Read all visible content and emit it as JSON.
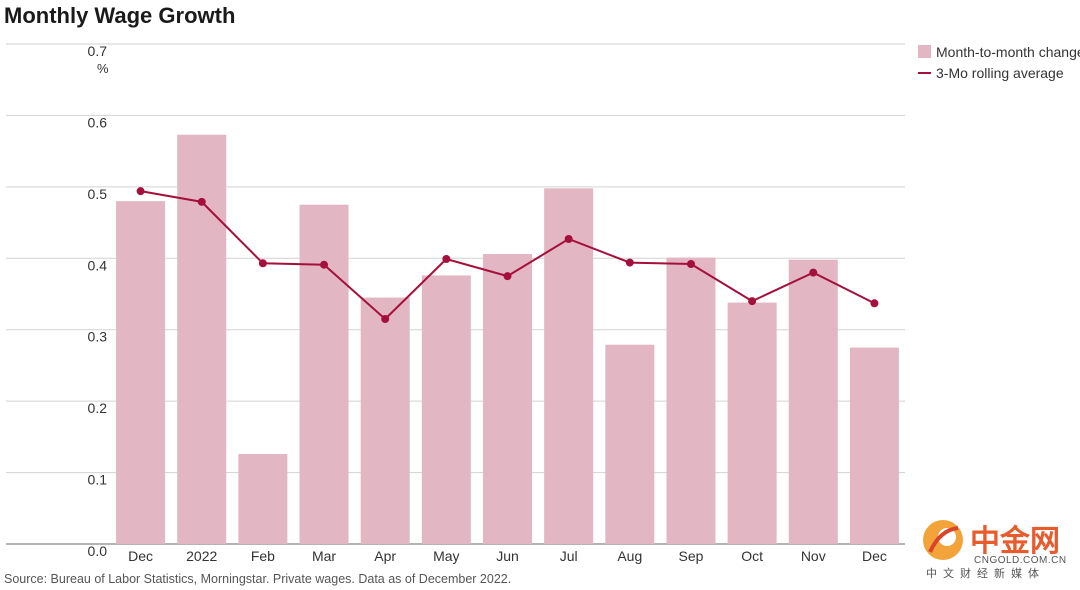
{
  "chart_data": {
    "type": "bar",
    "title": "Monthly Wage Growth",
    "y_unit": "%",
    "ylim": [
      0,
      0.7
    ],
    "yticks": [
      "0.0",
      "0.1",
      "0.2",
      "0.3",
      "0.4",
      "0.5",
      "0.6",
      "0.7"
    ],
    "categories": [
      "Dec",
      "2022",
      "Feb",
      "Mar",
      "Apr",
      "May",
      "Jun",
      "Jul",
      "Aug",
      "Sep",
      "Oct",
      "Nov",
      "Dec"
    ],
    "series": [
      {
        "name": "Month-to-month change",
        "kind": "bar",
        "color": "#e2b7c3",
        "values": [
          0.48,
          0.573,
          0.126,
          0.475,
          0.345,
          0.376,
          0.406,
          0.498,
          0.279,
          0.401,
          0.338,
          0.398,
          0.275
        ]
      },
      {
        "name": "3-Mo rolling average",
        "kind": "line",
        "color": "#a50f3c",
        "values": [
          0.494,
          0.479,
          0.393,
          0.391,
          0.315,
          0.399,
          0.375,
          0.427,
          0.394,
          0.392,
          0.34,
          0.38,
          0.337
        ]
      }
    ],
    "grid": true,
    "legend_position": "top-right",
    "source": "Source: Bureau of Labor Statistics, Morningstar. Private wages. Data as of December 2022."
  },
  "watermark": {
    "logo": "中金网",
    "domain": "CNGOLD.COM.CN",
    "tagline": "中文财经新媒体",
    "color": "#e85b2c"
  }
}
